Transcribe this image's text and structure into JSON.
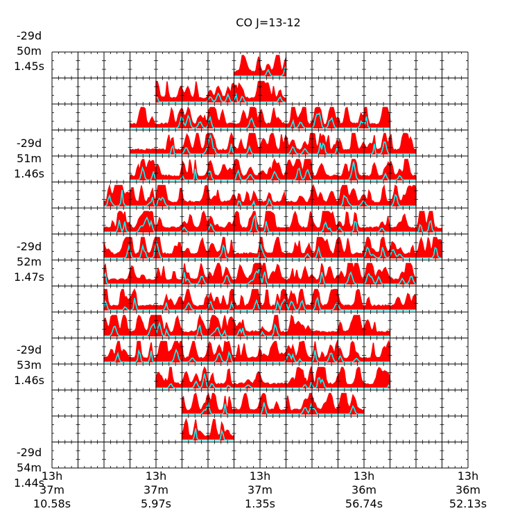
{
  "chart_data": {
    "type": "line",
    "title": "CO J=13-12",
    "grid": {
      "columns": 16,
      "rows": 16
    },
    "x_ticks": [
      {
        "lines": [
          "13h",
          "37m",
          "10.58s"
        ]
      },
      {
        "lines": [
          "13h",
          "37m",
          "5.97s"
        ]
      },
      {
        "lines": [
          "13h",
          "37m",
          "1.35s"
        ]
      },
      {
        "lines": [
          "13h",
          "36m",
          "56.74s"
        ]
      },
      {
        "lines": [
          "13h",
          "36m",
          "52.13s"
        ]
      }
    ],
    "y_ticks": [
      {
        "lines": [
          "-29d",
          "50m",
          "1.45s"
        ]
      },
      {
        "lines": [
          "-29d",
          "51m",
          "1.46s"
        ]
      },
      {
        "lines": [
          "-29d",
          "52m",
          "1.47s"
        ]
      },
      {
        "lines": [
          "-29d",
          "53m",
          "1.46s"
        ]
      },
      {
        "lines": [
          "-29d",
          "54m",
          "1.44s"
        ]
      }
    ],
    "row_coverage": [
      {
        "row": 0,
        "col_start": 7,
        "col_end": 8
      },
      {
        "row": 1,
        "col_start": 4,
        "col_end": 8
      },
      {
        "row": 2,
        "col_start": 3,
        "col_end": 12
      },
      {
        "row": 3,
        "col_start": 3,
        "col_end": 13
      },
      {
        "row": 4,
        "col_start": 3,
        "col_end": 13
      },
      {
        "row": 5,
        "col_start": 2,
        "col_end": 13
      },
      {
        "row": 6,
        "col_start": 2,
        "col_end": 14
      },
      {
        "row": 7,
        "col_start": 2,
        "col_end": 14
      },
      {
        "row": 8,
        "col_start": 2,
        "col_end": 13
      },
      {
        "row": 9,
        "col_start": 2,
        "col_end": 13
      },
      {
        "row": 10,
        "col_start": 2,
        "col_end": 12
      },
      {
        "row": 11,
        "col_start": 2,
        "col_end": 12
      },
      {
        "row": 12,
        "col_start": 4,
        "col_end": 12
      },
      {
        "row": 13,
        "col_start": 5,
        "col_end": 11
      },
      {
        "row": 14,
        "col_start": 5,
        "col_end": 6
      }
    ],
    "series": [
      {
        "role": "observed",
        "color": "#ff0000"
      },
      {
        "role": "model",
        "color": "#00ffff"
      }
    ],
    "colors": {
      "grid": "#000000",
      "observed": "#ff0000",
      "model": "#00ffff"
    }
  }
}
